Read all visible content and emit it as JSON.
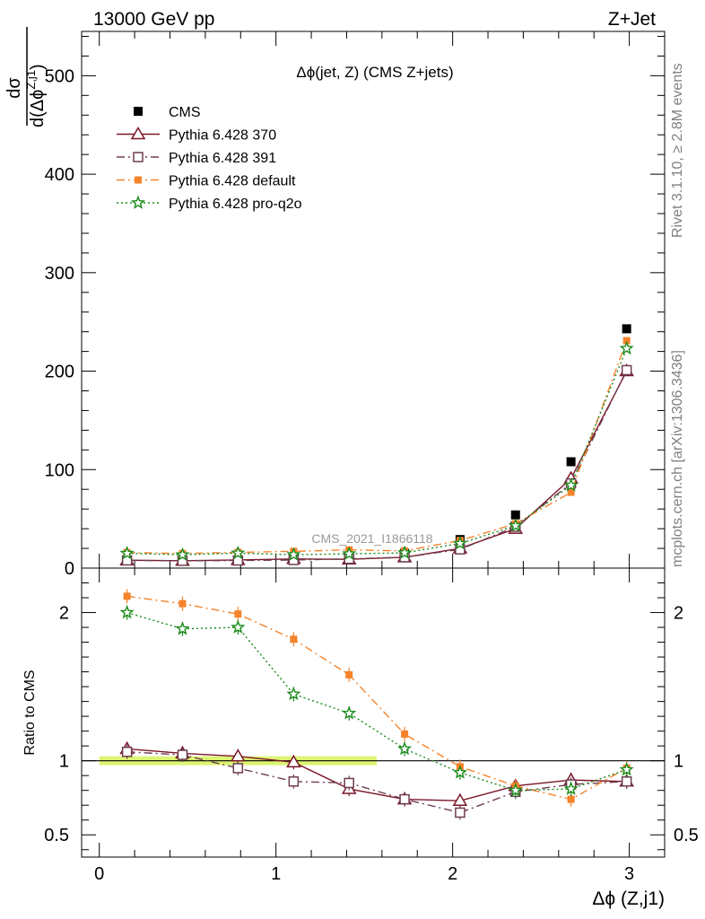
{
  "header": {
    "left": "13000 GeV pp",
    "right": "Z+Jet"
  },
  "side_labels": {
    "top": "Rivet 3.1.10, ≥ 2.8M events",
    "bottom": "mcplots.cern.ch [arXiv:1306.3436]"
  },
  "watermark": "CMS_2021_I1866118",
  "chart_data": [
    {
      "type": "scatter",
      "panel": "main",
      "title": "Δϕ(jet, Z) (CMS Z+jets)",
      "ylabel": "dσ / d(Δϕ^{Z,j1})",
      "ylabel_num": "dσ",
      "ylabel_den": "d(Δϕ",
      "ylabel_sup": "Z,j1",
      "ylabel_close": ")",
      "xlabel": "Δϕ (Z,j1)",
      "xlim": [
        -0.1,
        3.2
      ],
      "ylim": [
        0,
        545
      ],
      "yticks": [
        0,
        100,
        200,
        300,
        400,
        500
      ],
      "xticks": [
        0,
        1,
        2,
        3
      ],
      "x": [
        0.157,
        0.471,
        0.785,
        1.1,
        1.414,
        1.728,
        2.042,
        2.356,
        2.67,
        2.985
      ],
      "series": [
        {
          "name": "CMS",
          "color": "#000000",
          "marker": "filled-square",
          "line": "none",
          "values": [
            7.5,
            7.2,
            8.0,
            9.5,
            11.0,
            15.0,
            29.0,
            54.0,
            108.0,
            243.0
          ]
        },
        {
          "name": "Pythia 6.428 370",
          "color": "#7a1628",
          "marker": "open-triangle",
          "line": "solid",
          "values": [
            8.0,
            7.5,
            8.3,
            9.3,
            8.9,
            11.0,
            20.0,
            40.0,
            91.0,
            200.0
          ]
        },
        {
          "name": "Pythia 6.428 391",
          "color": "#6e3d4f",
          "marker": "open-square",
          "line": "dashdot",
          "values": [
            7.8,
            7.4,
            7.7,
            8.2,
            9.4,
            11.0,
            19.0,
            42.0,
            86.0,
            201.0
          ]
        },
        {
          "name": "Pythia 6.428 default",
          "color": "#f5832a",
          "marker": "filled-square-small",
          "line": "dashdot",
          "values": [
            15.8,
            14.8,
            16.0,
            17.0,
            18.5,
            17.5,
            28.0,
            45.0,
            77.0,
            231.0
          ]
        },
        {
          "name": "Pythia 6.428 pro-q2o",
          "color": "#1a8a1a",
          "marker": "star",
          "line": "dotted",
          "values": [
            15.0,
            13.5,
            15.2,
            13.6,
            14.5,
            15.5,
            25.0,
            43.0,
            84.0,
            223.0
          ]
        }
      ]
    },
    {
      "type": "scatter",
      "panel": "ratio",
      "ylabel": "Ratio to CMS",
      "xlabel": "Δϕ (Z,j1)",
      "xlim": [
        -0.1,
        3.2
      ],
      "ylim": [
        0.35,
        2.3
      ],
      "yticks": [
        0.5,
        1,
        2
      ],
      "ytick_labels": [
        "0.5",
        "1",
        "2"
      ],
      "xticks": [
        0,
        1,
        2,
        3
      ],
      "band": {
        "x_range": [
          0.0,
          1.57
        ],
        "y_range": [
          0.97,
          1.03
        ],
        "color": "#d7f35a"
      },
      "x": [
        0.157,
        0.471,
        0.785,
        1.1,
        1.414,
        1.728,
        2.042,
        2.356,
        2.67,
        2.985
      ],
      "series": [
        {
          "name": "Pythia 6.428 370",
          "color": "#7a1628",
          "marker": "open-triangle",
          "line": "solid",
          "values": [
            1.08,
            1.05,
            1.03,
            0.99,
            0.81,
            0.74,
            0.73,
            0.83,
            0.87,
            0.86
          ]
        },
        {
          "name": "Pythia 6.428 391",
          "color": "#6e3d4f",
          "marker": "open-square",
          "line": "dashdot",
          "values": [
            1.06,
            1.04,
            0.95,
            0.86,
            0.85,
            0.74,
            0.65,
            0.79,
            0.84,
            0.86
          ]
        },
        {
          "name": "Pythia 6.428 default",
          "color": "#f5832a",
          "marker": "filled-square-small",
          "line": "dashdot",
          "values": [
            2.11,
            2.06,
            1.99,
            1.82,
            1.58,
            1.18,
            0.96,
            0.83,
            0.74,
            0.95
          ]
        },
        {
          "name": "Pythia 6.428 pro-q2o",
          "color": "#1a8a1a",
          "marker": "star",
          "line": "dotted",
          "values": [
            2.0,
            1.89,
            1.9,
            1.45,
            1.32,
            1.08,
            0.92,
            0.8,
            0.81,
            0.94
          ]
        }
      ]
    }
  ]
}
